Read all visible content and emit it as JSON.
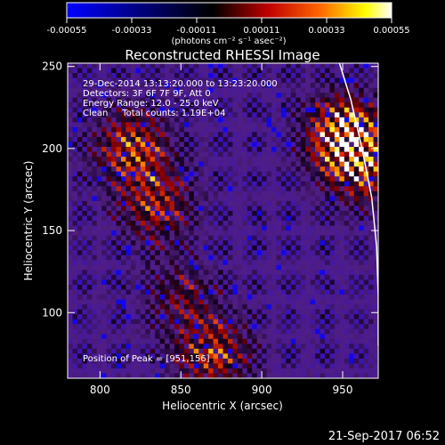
{
  "colorbar": {
    "tick_labels": [
      "-0.00055",
      "-0.00033",
      "-0.00011",
      "0.00011",
      "0.00033",
      "0.00055"
    ],
    "units": "(photons cm⁻² s⁻¹ asec⁻²)",
    "range": [
      -0.00055,
      0.00055
    ],
    "colormap": [
      "#0000ff",
      "#000000",
      "#c00000",
      "#ff6600",
      "#ffff00",
      "#ffffff"
    ]
  },
  "chart_data": {
    "type": "heatmap",
    "title": "Reconstructed RHESSI Image",
    "xlabel": "Heliocentric X (arcsec)",
    "ylabel": "Heliocentric Y (arcsec)",
    "xlim": [
      780,
      972
    ],
    "ylim": [
      60,
      252
    ],
    "x_ticks": [
      800,
      850,
      900,
      950
    ],
    "y_ticks": [
      100,
      150,
      200,
      250
    ],
    "info_lines": [
      "29-Dec-2014 13:13:20.000 to 13:23:20.000",
      "Detectors: 3F 6F 7F 9F, Att 0",
      "Energy Range: 12.0 - 25.0 keV",
      "Clean     Total counts: 1.19E+04"
    ],
    "peak_label": "Position of Peak = [951,156]",
    "peak": [
      951,
      156
    ],
    "sources": [
      {
        "x": 951,
        "y": 210,
        "amp": 1.0
      },
      {
        "x": 960,
        "y": 190,
        "amp": 0.8
      },
      {
        "x": 820,
        "y": 200,
        "amp": 0.75
      },
      {
        "x": 835,
        "y": 165,
        "amp": 0.6
      },
      {
        "x": 870,
        "y": 75,
        "amp": 0.7
      },
      {
        "x": 850,
        "y": 110,
        "amp": 0.4
      }
    ],
    "limb": [
      [
        948,
        252
      ],
      [
        955,
        230
      ],
      [
        962,
        200
      ],
      [
        968,
        170
      ],
      [
        971,
        140
      ],
      [
        972,
        110
      ],
      [
        972,
        80
      ]
    ]
  },
  "footer": {
    "timestamp": "21-Sep-2017 06:52"
  }
}
